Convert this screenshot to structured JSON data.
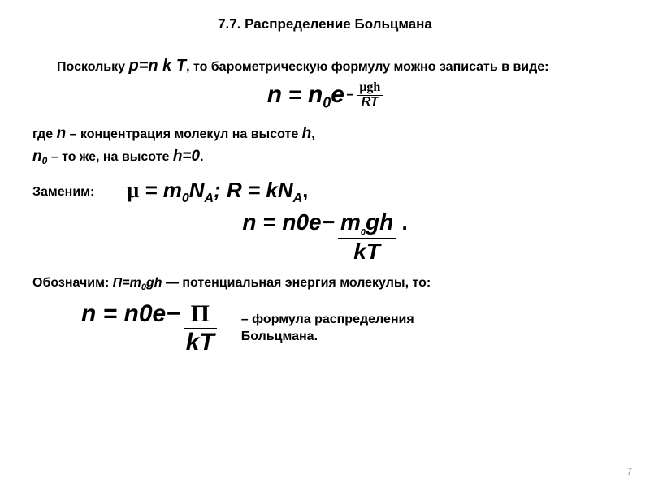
{
  "title": "7.7. Распределение Больцмана",
  "para1_pre": "Поскольку ",
  "para1_formula": "p=n k T",
  "para1_post": ", то барометрическую формулу можно записать в виде:",
  "eq1": {
    "lhs_n": "n",
    "eq": " = ",
    "n0_n": "n",
    "n0_sub": "0",
    "e": "e",
    "exp_minus": "−",
    "exp_num": "μgh",
    "exp_den": "RT"
  },
  "where_line1_pre": "где ",
  "where_line1_n": "n",
  "where_line1_mid": " – концентрация молекул на высоте ",
  "where_line1_h": "h",
  "where_line1_end": ",",
  "where_line2_n": "n",
  "where_line2_sub": "0",
  "where_line2_mid": "  – то же, на высоте ",
  "where_line2_h": "h=0",
  "where_line2_end": ".",
  "replace_label": "Заменим:",
  "replace_eq": {
    "mu": "μ",
    "eq1": " = m",
    "sub0": "0",
    "NA1": "N",
    "subA1": "A",
    "semi": "; R = kN",
    "subA2": "A",
    "comma": ","
  },
  "eq2": {
    "lhs_n": "n",
    "eq": " = ",
    "n0_n": "n",
    "n0_sub": "0",
    "e": "e",
    "exp_minus": "−",
    "exp_num_m": "m",
    "exp_num_sub": "0",
    "exp_num_rest": "gh",
    "exp_den": "kT",
    "period": " ."
  },
  "designate_pre": "Обозначим:  ",
  "designate_pi": "П=m",
  "designate_sub": "0",
  "designate_rest": "gh",
  "designate_post": " — потенциальная энергия молекулы, то:",
  "eq3": {
    "lhs_n": "n",
    "eq": " = ",
    "n0_n": "n",
    "n0_sub": "0",
    "e": "e",
    "exp_minus": "−",
    "exp_num": "П",
    "exp_den": "kT"
  },
  "final_label": "–  формула распределения Больцмана.",
  "page_number": "7",
  "colors": {
    "bg": "#ffffff",
    "text": "#000000",
    "pagenum": "#999999"
  }
}
